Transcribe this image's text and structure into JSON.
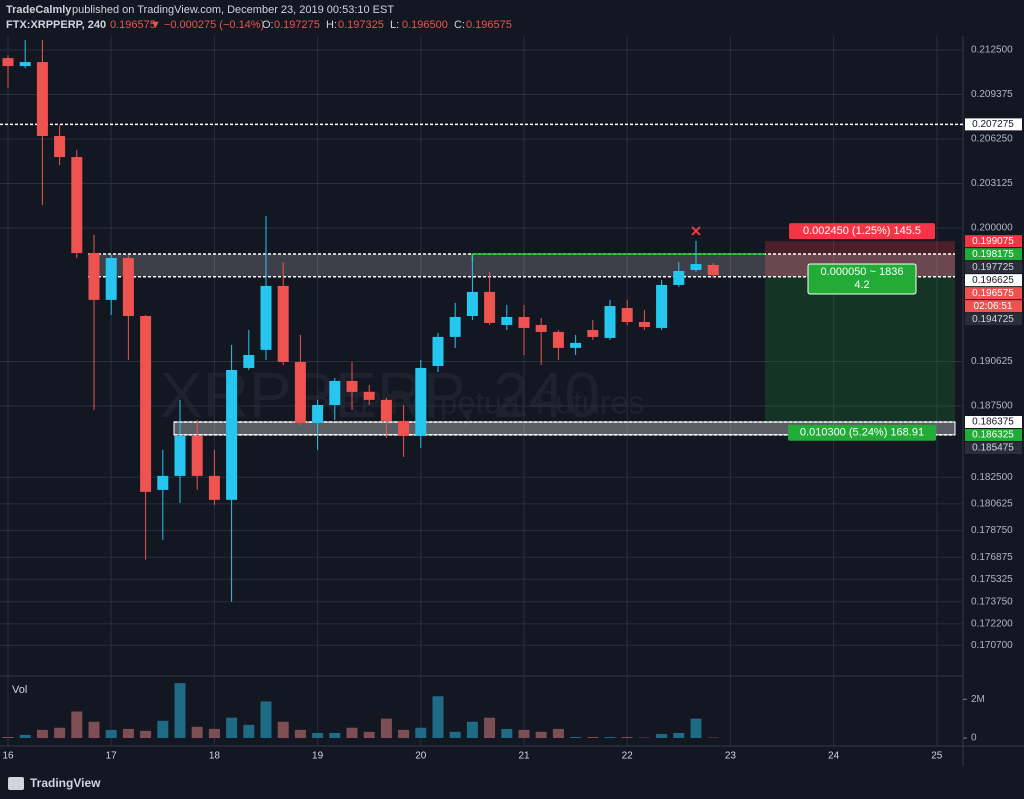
{
  "chart_data": {
    "type": "candlestick",
    "header": {
      "author": "TradeCalmly",
      "published": "published on TradingView.com, December 23, 2019 00:53:10 EST"
    },
    "legend": {
      "symbol": "FTX:XRPPERP, 240",
      "price": "0.196575",
      "change": "▼ −0.000275 (−0.14%)",
      "ohlc": [
        {
          "label": "O:",
          "value": "0.197275"
        },
        {
          "label": "H:",
          "value": "0.197325"
        },
        {
          "label": "L:",
          "value": "0.196500"
        },
        {
          "label": "C:",
          "value": "0.196575"
        }
      ]
    },
    "watermark": {
      "title": "XRPPERP, 240",
      "subtitle": "XRP Perpetual Futures"
    },
    "up_color": "#26c6f0",
    "down_color": "#ef5350",
    "candles": {
      "open": [
        0.21193,
        0.21137,
        0.21165,
        0.20646,
        0.20498,
        0.19824,
        0.19495,
        0.19789,
        0.19382,
        0.18161,
        0.18259,
        0.1854,
        0.18259,
        0.18091,
        0.19017,
        0.19144,
        0.19593,
        0.19059,
        0.18631,
        0.18757,
        0.18926,
        0.18849,
        0.18793,
        0.18645,
        0.1854,
        0.19031,
        0.19235,
        0.19382,
        0.19551,
        0.19319,
        0.19375,
        0.19319,
        0.1927,
        0.19158,
        0.19284,
        0.19228,
        0.19438,
        0.1934,
        0.19298,
        0.196,
        0.19705,
        0.1974
      ],
      "high": [
        0.21214,
        0.2132,
        0.2132,
        0.20723,
        0.20548,
        0.19951,
        0.1981,
        0.1981,
        0.19389,
        0.18442,
        0.18793,
        0.18652,
        0.18442,
        0.19179,
        0.19284,
        0.20084,
        0.19761,
        0.19249,
        0.18793,
        0.18947,
        0.19059,
        0.18898,
        0.18807,
        0.18757,
        0.19073,
        0.19263,
        0.19474,
        0.1981,
        0.19691,
        0.19459,
        0.19459,
        0.19368,
        0.19284,
        0.19249,
        0.19354,
        0.19495,
        0.19495,
        0.19424,
        0.19635,
        0.19761,
        0.19909,
        0.19754
      ],
      "low": [
        0.20983,
        0.21123,
        0.20161,
        0.20442,
        0.19789,
        0.18722,
        0.19389,
        0.19073,
        0.17669,
        0.1781,
        0.1807,
        0.18161,
        0.18055,
        0.17375,
        0.19003,
        0.19073,
        0.19038,
        0.18617,
        0.18442,
        0.18652,
        0.18722,
        0.18757,
        0.18526,
        0.18392,
        0.18456,
        0.18989,
        0.19158,
        0.19354,
        0.19319,
        0.19284,
        0.19108,
        0.19038,
        0.19073,
        0.19108,
        0.19214,
        0.19214,
        0.19319,
        0.19284,
        0.19284,
        0.19586,
        0.19691,
        0.19649
      ],
      "close": [
        0.21137,
        0.21165,
        0.20646,
        0.20498,
        0.19824,
        0.19495,
        0.19789,
        0.19382,
        0.18147,
        0.18259,
        0.1854,
        0.18259,
        0.18091,
        0.19003,
        0.19108,
        0.19593,
        0.19059,
        0.18631,
        0.18757,
        0.18926,
        0.18849,
        0.18793,
        0.18645,
        0.1854,
        0.19017,
        0.19235,
        0.19375,
        0.19551,
        0.19333,
        0.19375,
        0.19298,
        0.1927,
        0.19158,
        0.19193,
        0.19235,
        0.19452,
        0.1934,
        0.19305,
        0.196,
        0.19698,
        0.19747,
        0.1967
      ]
    },
    "ylim": [
      0.16882,
      0.2132
    ],
    "yticks": [
      {
        "value": 0.2125,
        "label": "0.212500"
      },
      0.209375,
      {
        "value": 0.20625,
        "label": "0.206250"
      },
      0.203125,
      {
        "value": 0.2,
        "label": "0.200000"
      },
      0.190625,
      {
        "value": 0.1875,
        "label": "0.187500"
      },
      {
        "value": 0.1825,
        "label": "0.182500"
      },
      0.180625,
      {
        "value": 0.17875,
        "label": "0.178750"
      },
      0.176875,
      0.175325,
      {
        "value": 0.17375,
        "label": "0.173750"
      },
      {
        "value": 0.1722,
        "label": "0.172200"
      },
      {
        "value": 0.1707,
        "label": "0.170700"
      }
    ],
    "xticks": [
      {
        "value": 0,
        "label": "16"
      },
      {
        "value": 6,
        "label": "17"
      },
      {
        "value": 12,
        "label": "18"
      },
      {
        "value": 18,
        "label": "19"
      },
      {
        "value": 24,
        "label": "20"
      },
      {
        "value": 30,
        "label": "21"
      },
      {
        "value": 36,
        "label": "22"
      },
      {
        "value": 42,
        "label": "23"
      },
      {
        "value": 48,
        "label": "24"
      },
      {
        "value": 54,
        "label": "25"
      }
    ],
    "grid": true,
    "price_labels": [
      {
        "value": 0.207275,
        "label": "0.207275",
        "bg": "#ffffff",
        "fg": "#131722"
      },
      {
        "value": 0.199075,
        "label": "0.199075",
        "bg": "#f23645",
        "fg": "#ffffff"
      },
      {
        "value": 0.198175,
        "label": "0.198175",
        "bg": "#22ab36",
        "fg": "#ffffff"
      },
      {
        "value": 0.197725,
        "label": "0.197725",
        "bg": "#2a2e39",
        "fg": "#d1d4dc"
      },
      {
        "value": 0.196625,
        "label": "0.196625",
        "bg": "#ffffff",
        "fg": "#131722"
      },
      {
        "value": 0.196575,
        "label": "0.196575",
        "bg": "#ef5350",
        "fg": "#ffffff"
      },
      {
        "value": 0.194725,
        "label": "0.194725",
        "bg": "#2a2e39",
        "fg": "#d1d4dc"
      },
      {
        "value": 0.186375,
        "label": "0.186375",
        "bg": "#ffffff",
        "fg": "#131722"
      },
      {
        "value": 0.186325,
        "label": "0.186325",
        "bg": "#22ab36",
        "fg": "#ffffff"
      },
      {
        "value": 0.185475,
        "label": "0.185475",
        "bg": "#2a2e39",
        "fg": "#d1d4dc"
      }
    ],
    "countdown": "02:06:51",
    "position": {
      "stop_label": "0.002450 (1.25%) 145.5",
      "mid_label": "0.000050 ~ 1836",
      "qty_label": "4.2",
      "target_label": "0.010300 (5.24%) 168.91"
    },
    "volume": {
      "title": "Vol",
      "values": [
        50000,
        160000,
        420000,
        530000,
        1370000,
        840000,
        420000,
        470000,
        370000,
        890000,
        2840000,
        580000,
        470000,
        1050000,
        680000,
        1890000,
        840000,
        420000,
        260000,
        260000,
        530000,
        320000,
        1000000,
        420000,
        530000,
        2160000,
        320000,
        840000,
        1050000,
        470000,
        420000,
        320000,
        470000,
        50000,
        50000,
        50000,
        50000,
        20000,
        210000,
        260000,
        1000000,
        20000
      ],
      "ylim": [
        0,
        3000000
      ],
      "yticks": [
        0,
        {
          "value": 2000000,
          "label": "2M"
        }
      ]
    },
    "footer": "TradingView"
  }
}
